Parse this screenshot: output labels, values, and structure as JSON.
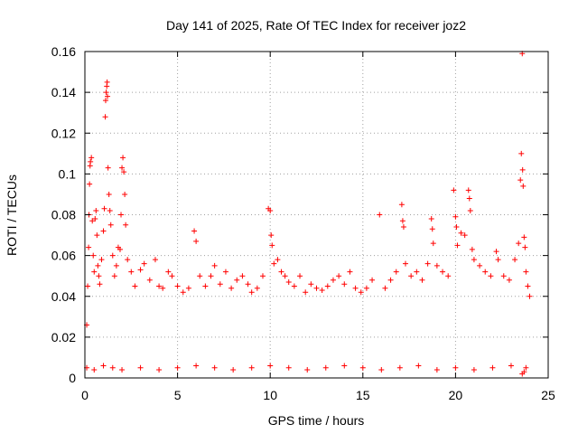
{
  "chart_data": {
    "type": "scatter",
    "title": "Day 141 of 2025, Rate Of TEC Index for receiver joz2",
    "xlabel": "GPS time / hours",
    "ylabel": "ROTI / TECUs",
    "xlim": [
      0,
      25
    ],
    "ylim": [
      0,
      0.16
    ],
    "xticks": [
      0,
      5,
      10,
      15,
      20,
      25
    ],
    "yticks": [
      0,
      0.02,
      0.04,
      0.06,
      0.08,
      0.1,
      0.12,
      0.14,
      0.16
    ],
    "xtick_labels": [
      "0",
      "5",
      "10",
      "15",
      "20",
      "25"
    ],
    "ytick_labels": [
      "0",
      "0.02",
      "0.04",
      "0.06",
      "0.08",
      "0.1",
      "0.12",
      "0.14",
      "0.16"
    ],
    "grid": true,
    "marker": "+",
    "color": "#ff0000",
    "series": [
      {
        "name": "ROTI",
        "points": [
          [
            0.1,
            0.026
          ],
          [
            0.15,
            0.045
          ],
          [
            0.2,
            0.064
          ],
          [
            0.22,
            0.08
          ],
          [
            0.25,
            0.095
          ],
          [
            0.28,
            0.104
          ],
          [
            0.3,
            0.106
          ],
          [
            0.35,
            0.108
          ],
          [
            0.4,
            0.077
          ],
          [
            0.45,
            0.06
          ],
          [
            0.5,
            0.052
          ],
          [
            0.55,
            0.078
          ],
          [
            0.6,
            0.082
          ],
          [
            0.65,
            0.07
          ],
          [
            0.7,
            0.055
          ],
          [
            0.75,
            0.05
          ],
          [
            0.8,
            0.046
          ],
          [
            0.9,
            0.058
          ],
          [
            1.0,
            0.072
          ],
          [
            1.05,
            0.083
          ],
          [
            1.1,
            0.128
          ],
          [
            1.12,
            0.136
          ],
          [
            1.15,
            0.14
          ],
          [
            1.18,
            0.143
          ],
          [
            1.2,
            0.145
          ],
          [
            1.22,
            0.138
          ],
          [
            1.25,
            0.103
          ],
          [
            1.3,
            0.09
          ],
          [
            1.35,
            0.082
          ],
          [
            1.4,
            0.075
          ],
          [
            1.5,
            0.06
          ],
          [
            1.6,
            0.05
          ],
          [
            1.7,
            0.055
          ],
          [
            1.8,
            0.064
          ],
          [
            1.9,
            0.063
          ],
          [
            1.95,
            0.08
          ],
          [
            2.0,
            0.103
          ],
          [
            2.05,
            0.108
          ],
          [
            2.1,
            0.101
          ],
          [
            2.15,
            0.09
          ],
          [
            2.2,
            0.075
          ],
          [
            2.3,
            0.058
          ],
          [
            2.5,
            0.052
          ],
          [
            2.7,
            0.045
          ],
          [
            3.0,
            0.053
          ],
          [
            3.2,
            0.056
          ],
          [
            3.5,
            0.048
          ],
          [
            3.8,
            0.058
          ],
          [
            4.0,
            0.045
          ],
          [
            4.2,
            0.044
          ],
          [
            4.5,
            0.052
          ],
          [
            4.7,
            0.05
          ],
          [
            5.0,
            0.045
          ],
          [
            5.3,
            0.042
          ],
          [
            5.6,
            0.044
          ],
          [
            5.9,
            0.072
          ],
          [
            6.0,
            0.067
          ],
          [
            6.2,
            0.05
          ],
          [
            6.5,
            0.045
          ],
          [
            6.8,
            0.05
          ],
          [
            7.0,
            0.055
          ],
          [
            7.3,
            0.046
          ],
          [
            7.6,
            0.052
          ],
          [
            7.9,
            0.044
          ],
          [
            8.2,
            0.048
          ],
          [
            8.5,
            0.05
          ],
          [
            8.8,
            0.046
          ],
          [
            9.0,
            0.042
          ],
          [
            9.3,
            0.044
          ],
          [
            9.6,
            0.05
          ],
          [
            9.9,
            0.083
          ],
          [
            10.0,
            0.082
          ],
          [
            10.05,
            0.07
          ],
          [
            10.1,
            0.065
          ],
          [
            10.2,
            0.056
          ],
          [
            10.4,
            0.058
          ],
          [
            10.6,
            0.052
          ],
          [
            10.8,
            0.05
          ],
          [
            11.0,
            0.047
          ],
          [
            11.3,
            0.045
          ],
          [
            11.6,
            0.05
          ],
          [
            11.9,
            0.042
          ],
          [
            12.2,
            0.046
          ],
          [
            12.5,
            0.044
          ],
          [
            12.8,
            0.043
          ],
          [
            13.1,
            0.045
          ],
          [
            13.4,
            0.048
          ],
          [
            13.7,
            0.05
          ],
          [
            14.0,
            0.046
          ],
          [
            14.3,
            0.052
          ],
          [
            14.6,
            0.044
          ],
          [
            14.9,
            0.042
          ],
          [
            15.2,
            0.044
          ],
          [
            15.5,
            0.048
          ],
          [
            15.9,
            0.08
          ],
          [
            16.2,
            0.044
          ],
          [
            16.5,
            0.048
          ],
          [
            16.8,
            0.052
          ],
          [
            17.1,
            0.085
          ],
          [
            17.15,
            0.077
          ],
          [
            17.2,
            0.074
          ],
          [
            17.3,
            0.056
          ],
          [
            17.6,
            0.05
          ],
          [
            17.9,
            0.052
          ],
          [
            18.2,
            0.048
          ],
          [
            18.5,
            0.056
          ],
          [
            18.7,
            0.078
          ],
          [
            18.75,
            0.073
          ],
          [
            18.8,
            0.066
          ],
          [
            19.0,
            0.055
          ],
          [
            19.3,
            0.052
          ],
          [
            19.6,
            0.05
          ],
          [
            19.9,
            0.092
          ],
          [
            20.0,
            0.079
          ],
          [
            20.05,
            0.074
          ],
          [
            20.1,
            0.065
          ],
          [
            20.3,
            0.071
          ],
          [
            20.5,
            0.07
          ],
          [
            20.7,
            0.092
          ],
          [
            20.75,
            0.088
          ],
          [
            20.8,
            0.082
          ],
          [
            20.9,
            0.063
          ],
          [
            21.0,
            0.058
          ],
          [
            21.3,
            0.055
          ],
          [
            21.6,
            0.052
          ],
          [
            21.9,
            0.05
          ],
          [
            22.2,
            0.062
          ],
          [
            22.3,
            0.058
          ],
          [
            22.6,
            0.05
          ],
          [
            22.9,
            0.048
          ],
          [
            23.2,
            0.058
          ],
          [
            23.4,
            0.066
          ],
          [
            23.5,
            0.097
          ],
          [
            23.55,
            0.11
          ],
          [
            23.6,
            0.159
          ],
          [
            23.62,
            0.102
          ],
          [
            23.65,
            0.094
          ],
          [
            23.7,
            0.069
          ],
          [
            23.75,
            0.064
          ],
          [
            23.8,
            0.052
          ],
          [
            23.9,
            0.045
          ],
          [
            24.0,
            0.04
          ],
          [
            0.1,
            0.005
          ],
          [
            0.5,
            0.004
          ],
          [
            1.0,
            0.006
          ],
          [
            1.5,
            0.005
          ],
          [
            2.0,
            0.004
          ],
          [
            3.0,
            0.005
          ],
          [
            4.0,
            0.004
          ],
          [
            5.0,
            0.005
          ],
          [
            6.0,
            0.006
          ],
          [
            7.0,
            0.005
          ],
          [
            8.0,
            0.004
          ],
          [
            9.0,
            0.005
          ],
          [
            10.0,
            0.006
          ],
          [
            11.0,
            0.005
          ],
          [
            12.0,
            0.004
          ],
          [
            13.0,
            0.005
          ],
          [
            14.0,
            0.006
          ],
          [
            15.0,
            0.005
          ],
          [
            16.0,
            0.004
          ],
          [
            17.0,
            0.005
          ],
          [
            18.0,
            0.006
          ],
          [
            19.0,
            0.004
          ],
          [
            20.0,
            0.005
          ],
          [
            21.0,
            0.004
          ],
          [
            22.0,
            0.005
          ],
          [
            23.0,
            0.006
          ],
          [
            23.6,
            0.002
          ],
          [
            23.7,
            0.003
          ],
          [
            23.8,
            0.005
          ]
        ]
      }
    ]
  }
}
